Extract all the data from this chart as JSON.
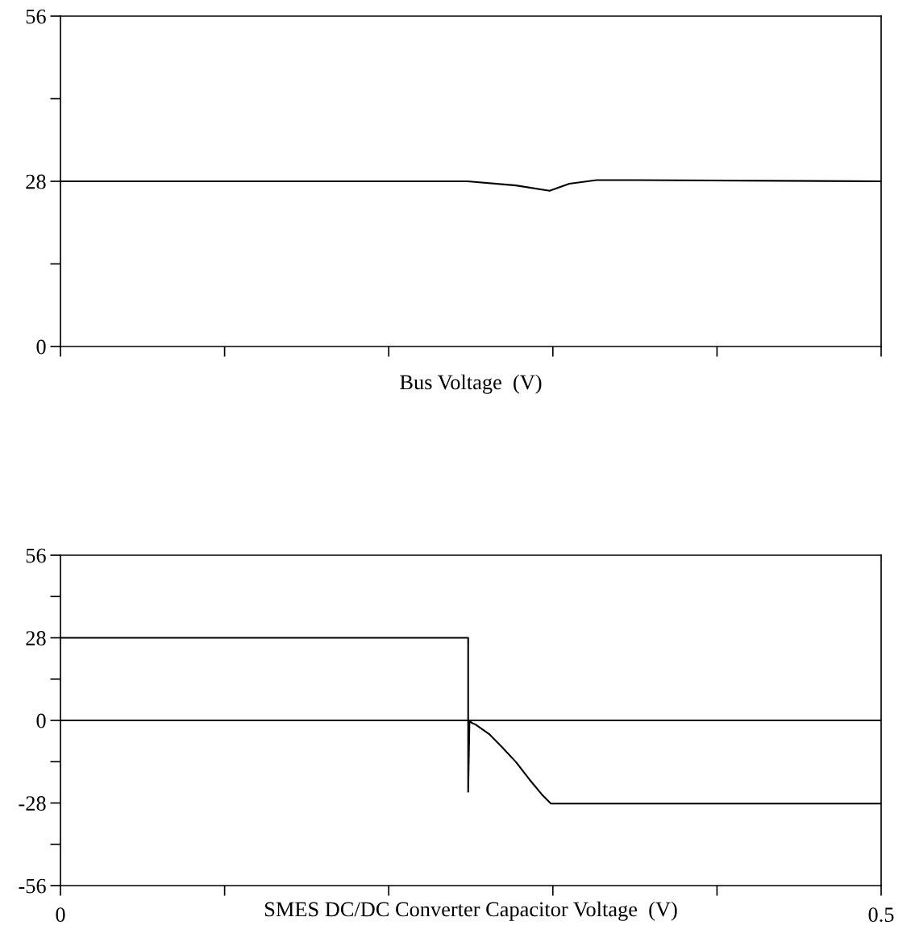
{
  "chart_data": [
    {
      "type": "line",
      "xlabel": "Bus Voltage  (V)",
      "tick_labels": "y",
      "grid": false,
      "legend": false,
      "xlim": [
        0,
        0.5
      ],
      "ylim": [
        0,
        56
      ],
      "xticks": [
        {
          "value": 0,
          "label": null
        },
        {
          "value": 0.1,
          "label": null
        },
        {
          "value": 0.2,
          "label": null
        },
        {
          "value": 0.3,
          "label": null
        },
        {
          "value": 0.4,
          "label": null
        },
        {
          "value": 0.5,
          "label": null
        }
      ],
      "yticks": [
        0,
        {
          "value": 14,
          "label": null
        },
        28,
        {
          "value": 42,
          "label": null
        },
        56
      ],
      "series": [
        {
          "color": "#000000",
          "x": [
            0,
            0.248,
            0.2775,
            0.298,
            0.31,
            0.3266,
            0.35,
            0.5
          ],
          "values": [
            28,
            28,
            27.3,
            26.4,
            27.6,
            28.2,
            28.2,
            28
          ]
        }
      ]
    },
    {
      "type": "line",
      "xlabel": "SMES DC/DC Converter Capacitor Voltage  (V)",
      "grid": false,
      "legend": false,
      "xlim": [
        0,
        0.5
      ],
      "ylim": [
        -56,
        56
      ],
      "xticks": [
        0,
        {
          "value": 0.1,
          "label": null
        },
        {
          "value": 0.2,
          "label": null
        },
        {
          "value": 0.3,
          "label": null
        },
        {
          "value": 0.4,
          "label": null
        },
        0.5
      ],
      "yticks": [
        -56,
        {
          "value": -42,
          "label": null
        },
        -28,
        {
          "value": -14,
          "label": null
        },
        0,
        {
          "value": 14,
          "label": null
        },
        28,
        {
          "value": 42,
          "label": null
        },
        56
      ],
      "ref_lines": [
        {
          "axis": "y",
          "value": 0,
          "label": null,
          "color": "#000000"
        }
      ],
      "series": [
        {
          "color": "#000000",
          "x": [
            0,
            0.2484,
            0.2484,
            0.2492,
            0.2505,
            0.2529,
            0.2611,
            0.2693,
            0.2775,
            0.2857,
            0.2939,
            0.2988,
            0.5
          ],
          "values": [
            28,
            28,
            -24.2,
            0,
            -0.8,
            -1.4,
            -4.6,
            -9.2,
            -14.1,
            -20,
            -25.5,
            -28.2,
            -28.2
          ]
        }
      ]
    }
  ]
}
